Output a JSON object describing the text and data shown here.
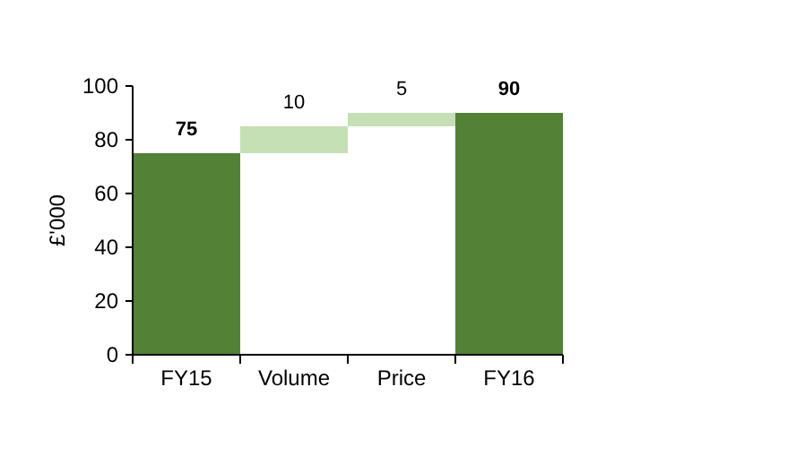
{
  "chart_data": {
    "type": "bar",
    "ylabel": "£'000",
    "categories": [
      "FY15",
      "Volume",
      "Price",
      "FY16"
    ],
    "values": [
      75,
      10,
      5,
      90
    ],
    "base": [
      0,
      75,
      85,
      0
    ],
    "colors": [
      "#538135",
      "#c5e0b4",
      "#c5e0b4",
      "#538135"
    ],
    "ylim": [
      0,
      100
    ],
    "yticks": [
      0,
      20,
      40,
      60,
      80,
      100
    ],
    "data_labels": true,
    "grid": false
  }
}
